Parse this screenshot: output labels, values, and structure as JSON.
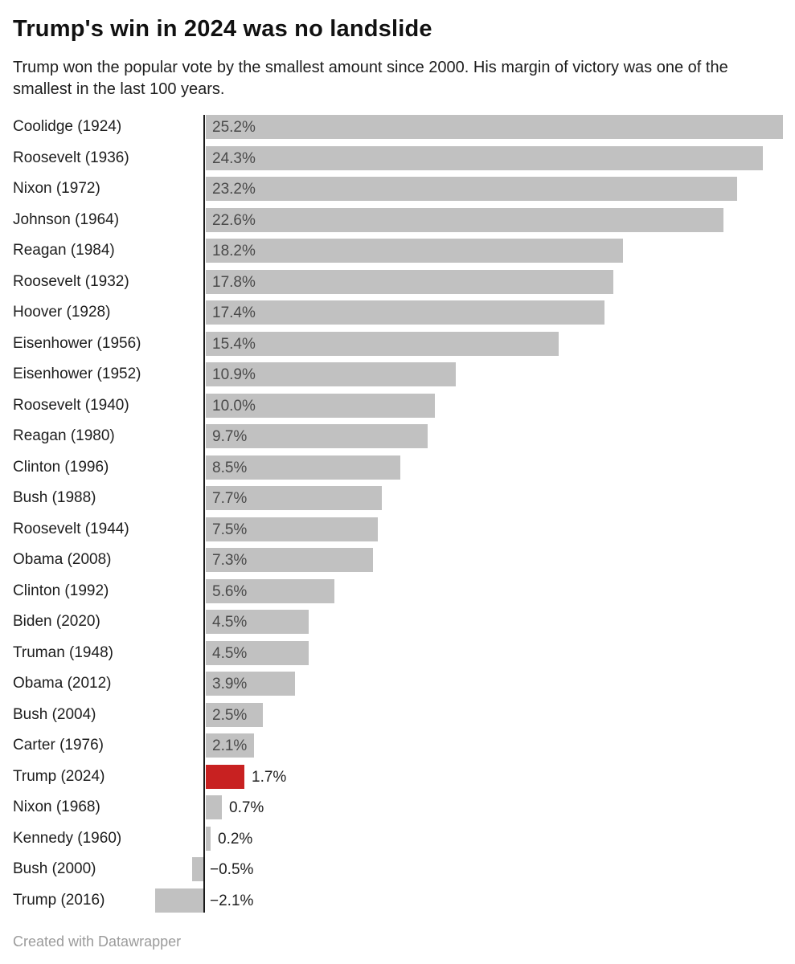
{
  "header": {
    "title": "Trump's win in 2024 was no landslide",
    "subtitle": "Trump won the popular vote by the smallest amount since 2000. His margin of victory was one of the smallest in the last 100 years."
  },
  "footer": {
    "attribution": "Created with Datawrapper"
  },
  "colors": {
    "bar": "#c1c1c1",
    "highlight": "#c82121",
    "axis": "#1a1a1a",
    "category_label": "#1d1d1d",
    "value_inside": "#4a4a4a",
    "value_outside": "#1d1d1d",
    "footer_text": "#9b9b9b"
  },
  "chart_data": {
    "type": "bar",
    "orientation": "horizontal",
    "title": "Trump's win in 2024 was no landslide",
    "subtitle": "Trump won the popular vote by the smallest amount since 2000. His margin of victory was one of the smallest in the last 100 years.",
    "xlabel": "",
    "ylabel": "",
    "unit": "%",
    "xlim": [
      -2.6,
      25.8
    ],
    "grid": false,
    "legend": false,
    "highlight_index": 21,
    "highlight_category": "Trump (2024)",
    "categories": [
      "Coolidge (1924)",
      "Roosevelt (1936)",
      "Nixon (1972)",
      "Johnson (1964)",
      "Reagan (1984)",
      "Roosevelt (1932)",
      "Hoover (1928)",
      "Eisenhower (1956)",
      "Eisenhower (1952)",
      "Roosevelt (1940)",
      "Reagan (1980)",
      "Clinton (1996)",
      "Bush (1988)",
      "Roosevelt (1944)",
      "Obama (2008)",
      "Clinton (1992)",
      "Biden (2020)",
      "Truman (1948)",
      "Obama (2012)",
      "Bush (2004)",
      "Carter (1976)",
      "Trump (2024)",
      "Nixon (1968)",
      "Kennedy (1960)",
      "Bush (2000)",
      "Trump (2016)"
    ],
    "values": [
      25.2,
      24.3,
      23.2,
      22.6,
      18.2,
      17.8,
      17.4,
      15.4,
      10.9,
      10.0,
      9.7,
      8.5,
      7.7,
      7.5,
      7.3,
      5.6,
      4.5,
      4.5,
      3.9,
      2.5,
      2.1,
      1.7,
      0.7,
      0.2,
      -0.5,
      -2.1
    ],
    "value_labels": [
      "25.2%",
      "24.3%",
      "23.2%",
      "22.6%",
      "18.2%",
      "17.8%",
      "17.4%",
      "15.4%",
      "10.9%",
      "10.0%",
      "9.7%",
      "8.5%",
      "7.7%",
      "7.5%",
      "7.3%",
      "5.6%",
      "4.5%",
      "4.5%",
      "3.9%",
      "2.5%",
      "2.1%",
      "1.7%",
      "0.7%",
      "0.2%",
      "−0.5%",
      "−2.1%"
    ]
  }
}
